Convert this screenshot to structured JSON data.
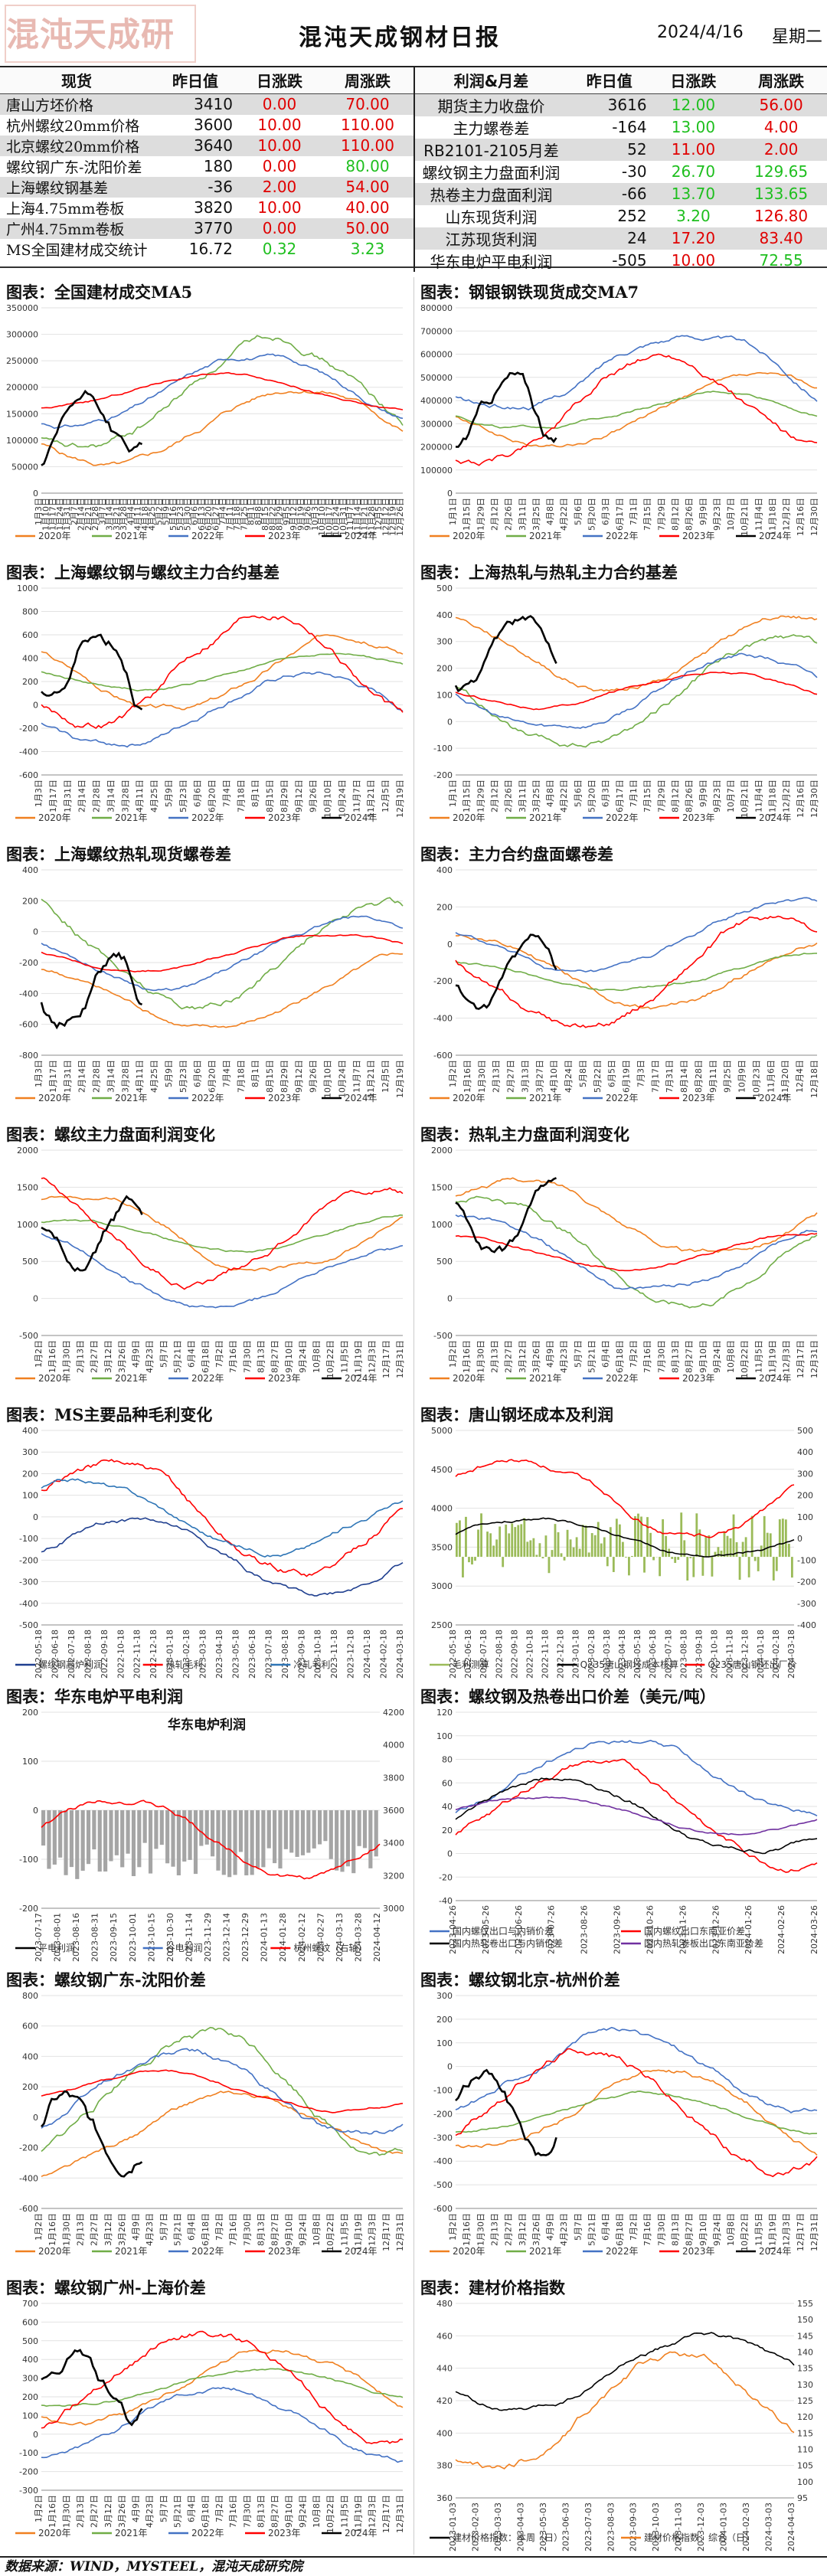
{
  "header": {
    "logo": "混沌天成研究院",
    "title": "混沌天成钢材日报",
    "date": "2024/4/16",
    "weekday": "星期二"
  },
  "quote_table": {
    "left_headers": [
      "现货",
      "昨日值",
      "日涨跌",
      "周涨跌"
    ],
    "right_headers": [
      "利润&月差",
      "昨日值",
      "日涨跌",
      "周涨跌"
    ],
    "left_rows": [
      [
        "唐山方坯价格",
        "3410",
        "0.00",
        "70.00"
      ],
      [
        "杭州螺纹20mm价格",
        "3600",
        "10.00",
        "110.00"
      ],
      [
        "北京螺纹20mm价格",
        "3640",
        "10.00",
        "110.00"
      ],
      [
        "螺纹钢广东-沈阳价差",
        "180",
        "0.00",
        "80.00"
      ],
      [
        "上海螺纹钢基差",
        "-36",
        "2.00",
        "54.00"
      ],
      [
        "上海4.75mm卷板",
        "3820",
        "10.00",
        "40.00"
      ],
      [
        "广州4.75mm卷板",
        "3770",
        "0.00",
        "50.00"
      ],
      [
        "MS全国建材成交统计",
        "16.72",
        "0.32",
        "3.23"
      ]
    ],
    "left_colors": [
      [
        "red",
        "red"
      ],
      [
        "red",
        "red"
      ],
      [
        "red",
        "red"
      ],
      [
        "red",
        "grn"
      ],
      [
        "red",
        "red"
      ],
      [
        "red",
        "red"
      ],
      [
        "red",
        "red"
      ],
      [
        "grn",
        "grn"
      ]
    ],
    "right_rows": [
      [
        "期货主力收盘价",
        "3616",
        "12.00",
        "56.00"
      ],
      [
        "主力螺卷差",
        "-164",
        "13.00",
        "4.00"
      ],
      [
        "RB2101-2105月差",
        "52",
        "11.00",
        "2.00"
      ],
      [
        "螺纹钢主力盘面利润",
        "-30",
        "26.70",
        "129.65"
      ],
      [
        "热卷主力盘面利润",
        "-66",
        "13.70",
        "133.65"
      ],
      [
        "山东现货利润",
        "252",
        "3.20",
        "126.80"
      ],
      [
        "江苏现货利润",
        "24",
        "17.20",
        "83.40"
      ],
      [
        "华东电炉平电利润",
        "-505",
        "10.00",
        "72.55"
      ]
    ],
    "right_colors": [
      [
        "grn",
        "red"
      ],
      [
        "grn",
        "red"
      ],
      [
        "red",
        "red"
      ],
      [
        "grn",
        "grn"
      ],
      [
        "grn",
        "grn"
      ],
      [
        "grn",
        "red"
      ],
      [
        "red",
        "red"
      ],
      [
        "red",
        "grn"
      ]
    ]
  },
  "colors": {
    "y2020": "#f08020",
    "y2021": "#70ad47",
    "y2022": "#4472c4",
    "y2023": "#ff0000",
    "y2024": "#000000"
  },
  "panels": [
    {
      "id": "p1",
      "title": "图表：全国建材成交MA5",
      "yticks": [
        "0",
        "50000",
        "100000",
        "150000",
        "200000",
        "250000",
        "300000",
        "350000"
      ],
      "xticks": [
        "1月3日",
        "1月10日",
        "1月17日",
        "1月24日",
        "1月31日",
        "2月7日",
        "2月14日",
        "2月21日",
        "2月28日",
        "3月7日",
        "3月14日",
        "3月21日",
        "3月28日",
        "4月4日",
        "4月11日",
        "4月18日",
        "4月25日",
        "5月2日",
        "5月9日",
        "5月16日",
        "5月23日",
        "5月30日",
        "6月6日",
        "6月13日",
        "6月20日",
        "6月27日",
        "7月4日",
        "7月11日",
        "7月18日",
        "7月25日",
        "8月1日",
        "8月8日",
        "8月15日",
        "8月22日",
        "8月29日",
        "9月5日",
        "9月12日",
        "9月19日",
        "9月26日",
        "10月3日",
        "10月10日",
        "10月17日",
        "10月24日",
        "10月31日",
        "11月7日",
        "11月14日",
        "11月21日",
        "11月28日",
        "12月5日",
        "12月12日",
        "12月19日",
        "12月26日"
      ],
      "legend": [
        "2020年",
        "2021年",
        "2022年",
        "2023年",
        "2024年"
      ]
    },
    {
      "id": "p2",
      "title": "图表：钢银钢铁现货成交MA7",
      "yticks": [
        "0",
        "100000",
        "200000",
        "300000",
        "400000",
        "500000",
        "600000",
        "700000",
        "800000"
      ],
      "xticks": [
        "1月1日",
        "1月15日",
        "1月29日",
        "2月12日",
        "2月26日",
        "3月11日",
        "3月25日",
        "4月8日",
        "4月22日",
        "5月6日",
        "5月20日",
        "6月3日",
        "6月17日",
        "7月1日",
        "7月15日",
        "7月29日",
        "8月12日",
        "8月26日",
        "9月9日",
        "9月23日",
        "10月7日",
        "10月21日",
        "11月4日",
        "11月18日",
        "12月2日",
        "12月16日",
        "12月30日"
      ],
      "legend": [
        "2020年",
        "2021年",
        "2022年",
        "2023年",
        "2024年"
      ]
    },
    {
      "id": "p3",
      "title": "图表：上海螺纹钢与螺纹主力合约基差",
      "yticks": [
        "-600",
        "-400",
        "-200",
        "0",
        "200",
        "400",
        "600",
        "800",
        "1000"
      ],
      "xticks": [
        "1月3日",
        "1月17日",
        "1月31日",
        "2月14日",
        "2月28日",
        "3月14日",
        "3月28日",
        "4月11日",
        "4月25日",
        "5月9日",
        "5月23日",
        "6月6日",
        "6月20日",
        "7月4日",
        "7月18日",
        "8月1日",
        "8月15日",
        "8月29日",
        "9月12日",
        "9月26日",
        "10月10日",
        "10月24日",
        "11月7日",
        "11月21日",
        "12月5日",
        "12月19日"
      ],
      "legend": [
        "2020年",
        "2021年",
        "2022年",
        "2023年",
        "2024年"
      ]
    },
    {
      "id": "p4",
      "title": "图表：上海热轧与热轧主力合约基差",
      "yticks": [
        "-200",
        "-100",
        "0",
        "100",
        "200",
        "300",
        "400",
        "500"
      ],
      "xticks": [
        "1月1日",
        "1月15日",
        "1月29日",
        "2月12日",
        "2月26日",
        "3月11日",
        "3月25日",
        "4月8日",
        "4月22日",
        "5月6日",
        "5月20日",
        "6月3日",
        "6月17日",
        "7月1日",
        "7月15日",
        "7月29日",
        "8月12日",
        "8月26日",
        "9月9日",
        "9月23日",
        "10月7日",
        "10月21日",
        "11月4日",
        "11月18日",
        "12月2日",
        "12月16日",
        "12月30日"
      ],
      "legend": [
        "2020年",
        "2021年",
        "2022年",
        "2023年",
        "2024年"
      ]
    },
    {
      "id": "p5",
      "title": "图表：上海螺纹热轧现货螺卷差",
      "yticks": [
        "-800",
        "-600",
        "-400",
        "-200",
        "0",
        "200",
        "400"
      ],
      "xticks": [
        "1月3日",
        "1月17日",
        "1月31日",
        "2月14日",
        "2月28日",
        "3月14日",
        "3月28日",
        "4月11日",
        "4月25日",
        "5月9日",
        "5月23日",
        "6月6日",
        "6月20日",
        "7月4日",
        "7月18日",
        "8月1日",
        "8月15日",
        "8月29日",
        "9月12日",
        "9月26日",
        "10月10日",
        "10月24日",
        "11月7日",
        "11月21日",
        "12月5日",
        "12月19日"
      ],
      "legend": [
        "2020年",
        "2021年",
        "2022年",
        "2023年",
        "2024年"
      ]
    },
    {
      "id": "p6",
      "title": "图表：主力合约盘面螺卷差",
      "yticks": [
        "-600",
        "-400",
        "-200",
        "0",
        "200",
        "400"
      ],
      "xticks": [
        "1月2日",
        "1月16日",
        "1月30日",
        "2月13日",
        "2月27日",
        "3月13日",
        "3月27日",
        "4月10日",
        "4月24日",
        "5月8日",
        "5月22日",
        "6月5日",
        "6月19日",
        "7月3日",
        "7月17日",
        "7月31日",
        "8月14日",
        "8月28日",
        "9月11日",
        "9月25日",
        "10月9日",
        "10月23日",
        "11月6日",
        "11月20日",
        "12月4日",
        "12月18日"
      ],
      "legend": [
        "2020年",
        "2021年",
        "2022年",
        "2023年",
        "2024年"
      ]
    },
    {
      "id": "p7",
      "title": "图表：螺纹主力盘面利润变化",
      "yticks": [
        "-500",
        "0",
        "500",
        "1000",
        "1500",
        "2000"
      ],
      "xticks": [
        "1月2日",
        "1月16日",
        "1月30日",
        "2月13日",
        "2月27日",
        "3月12日",
        "3月26日",
        "4月9日",
        "4月23日",
        "5月7日",
        "5月21日",
        "6月4日",
        "6月18日",
        "7月2日",
        "7月16日",
        "7月30日",
        "8月13日",
        "8月27日",
        "9月10日",
        "9月24日",
        "10月8日",
        "10月22日",
        "11月5日",
        "11月19日",
        "12月3日",
        "12月17日",
        "12月31日"
      ],
      "legend": [
        "2020年",
        "2021年",
        "2022年",
        "2023年",
        "2024年"
      ]
    },
    {
      "id": "p8",
      "title": "图表：热轧主力盘面利润变化",
      "yticks": [
        "-500",
        "0",
        "500",
        "1000",
        "1500",
        "2000"
      ],
      "xticks": [
        "1月2日",
        "1月16日",
        "1月30日",
        "2月13日",
        "2月27日",
        "3月12日",
        "3月26日",
        "4月9日",
        "4月23日",
        "5月7日",
        "5月21日",
        "6月4日",
        "6月18日",
        "7月2日",
        "7月16日",
        "7月30日",
        "8月13日",
        "8月27日",
        "9月10日",
        "9月24日",
        "10月8日",
        "10月22日",
        "11月5日",
        "11月19日",
        "12月3日",
        "12月17日",
        "12月31日"
      ],
      "legend": [
        "2020年",
        "2021年",
        "2022年",
        "2023年",
        "2024年"
      ]
    },
    {
      "id": "p9",
      "title": "图表：MS主要品种毛利变化",
      "yticks": [
        "-500",
        "-400",
        "-300",
        "-200",
        "-100",
        "0",
        "100",
        "200",
        "300",
        "400"
      ],
      "xticks": [
        "2022-05-18",
        "2022-06-18",
        "2022-07-18",
        "2022-08-18",
        "2022-09-18",
        "2022-10-18",
        "2022-11-18",
        "2022-12-18",
        "2023-01-18",
        "2023-02-18",
        "2023-03-18",
        "2023-04-18",
        "2023-05-18",
        "2023-06-18",
        "2023-07-18",
        "2023-08-18",
        "2023-09-18",
        "2023-10-18",
        "2023-11-18",
        "2023-12-18",
        "2024-01-18",
        "2024-02-18",
        "2024-03-18"
      ],
      "legend": [
        "螺纹钢高炉利润",
        "热轧毛利",
        "冷轧毛利"
      ]
    },
    {
      "id": "p10",
      "title": "图表：唐山钢坯成本及利润",
      "yticks": [
        "2500",
        "3000",
        "3500",
        "4000",
        "4500",
        "5000"
      ],
      "y2ticks": [
        "-400",
        "-300",
        "-200",
        "-100",
        "0",
        "100",
        "200",
        "300",
        "400",
        "500"
      ],
      "xticks": [
        "2022-05-18",
        "2022-06-18",
        "2022-07-18",
        "2022-08-18",
        "2022-09-18",
        "2022-10-18",
        "2022-11-18",
        "2022-12-18",
        "2023-01-18",
        "2023-02-18",
        "2023-03-18",
        "2023-04-18",
        "2023-05-18",
        "2023-06-18",
        "2023-07-18",
        "2023-08-18",
        "2023-09-18",
        "2023-10-18",
        "2023-11-18",
        "2023-12-18",
        "2024-01-18",
        "2024-02-18",
        "2024-03-18"
      ],
      "legend": [
        "毛利测算",
        "Q235唐山钢坯成本核算",
        "Q235唐山钢坯出厂价"
      ]
    },
    {
      "id": "p11",
      "title": "图表：华东电炉平电利润",
      "inner_title": "华东电炉利润",
      "yticks": [
        "-200",
        "-100",
        "0",
        "100",
        "200"
      ],
      "y2ticks": [
        "3000",
        "3200",
        "3400",
        "3600",
        "3800",
        "4000",
        "4200"
      ],
      "xticks": [
        "2023-07-17",
        "2023-08-01",
        "2023-08-16",
        "2023-08-31",
        "2023-09-15",
        "2023-10-01",
        "2023-10-15",
        "2023-10-30",
        "2023-11-14",
        "2023-11-29",
        "2023-12-14",
        "2023-12-29",
        "2024-01-13",
        "2024-01-28",
        "2024-02-12",
        "2024-02-27",
        "2024-03-13",
        "2024-03-28",
        "2024-04-12"
      ],
      "legend": [
        "平电利润",
        "谷电利润",
        "杭州螺纹（右轴）"
      ]
    },
    {
      "id": "p12",
      "title": "图表：螺纹钢及热卷出口价差（美元/吨）",
      "yticks": [
        "-40",
        "-20",
        "0",
        "20",
        "40",
        "60",
        "80",
        "100",
        "120"
      ],
      "xticks": [
        "2023-04-26",
        "2023-05-26",
        "2023-06-26",
        "2023-07-26",
        "2023-08-26",
        "2023-09-26",
        "2023-10-26",
        "2023-11-26",
        "2023-12-26",
        "2024-01-26",
        "2024-02-26",
        "2024-03-26"
      ],
      "legend": [
        "国内螺纹出口与内销价差",
        "国内螺纹出口东南亚价差",
        "国内热轧卷出口与内销价差",
        "国内热轧卷板出口东南亚价差"
      ]
    },
    {
      "id": "p13",
      "title": "图表：螺纹钢广东-沈阳价差",
      "yticks": [
        "-600",
        "-400",
        "-200",
        "0",
        "200",
        "400",
        "600",
        "800"
      ],
      "xticks": [
        "1月2日",
        "1月16日",
        "1月30日",
        "2月13日",
        "2月27日",
        "3月12日",
        "3月26日",
        "4月9日",
        "4月23日",
        "5月7日",
        "5月21日",
        "6月4日",
        "6月18日",
        "7月2日",
        "7月16日",
        "7月30日",
        "8月13日",
        "8月27日",
        "9月10日",
        "9月24日",
        "10月8日",
        "10月22日",
        "11月5日",
        "11月19日",
        "12月3日",
        "12月17日",
        "12月31日"
      ],
      "legend": [
        "2020年",
        "2021年",
        "2022年",
        "2023年",
        "2024年"
      ]
    },
    {
      "id": "p14",
      "title": "图表：螺纹钢北京-杭州价差",
      "yticks": [
        "-600",
        "-500",
        "-400",
        "-300",
        "-200",
        "-100",
        "0",
        "100",
        "200",
        "300"
      ],
      "xticks": [
        "1月2日",
        "1月16日",
        "1月30日",
        "2月13日",
        "2月27日",
        "3月12日",
        "3月26日",
        "4月9日",
        "4月23日",
        "5月7日",
        "5月21日",
        "6月4日",
        "6月18日",
        "7月2日",
        "7月16日",
        "7月30日",
        "8月13日",
        "8月27日",
        "9月10日",
        "9月24日",
        "10月8日",
        "10月22日",
        "11月5日",
        "11月19日",
        "12月3日",
        "12月17日",
        "12月31日"
      ],
      "legend": [
        "2020年",
        "2021年",
        "2022年",
        "2023年",
        "2024年"
      ]
    },
    {
      "id": "p15",
      "title": "图表：螺纹钢广州-上海价差",
      "yticks": [
        "-300",
        "-200",
        "-100",
        "0",
        "100",
        "200",
        "300",
        "400",
        "500",
        "600",
        "700"
      ],
      "xticks": [
        "1月2日",
        "1月16日",
        "1月30日",
        "2月13日",
        "2月27日",
        "3月12日",
        "3月26日",
        "4月9日",
        "4月23日",
        "5月7日",
        "5月21日",
        "6月4日",
        "6月18日",
        "7月2日",
        "7月16日",
        "7月30日",
        "8月13日",
        "8月27日",
        "9月10日",
        "9月24日",
        "10月8日",
        "10月22日",
        "11月5日",
        "11月19日",
        "12月3日",
        "12月17日",
        "12月31日"
      ],
      "legend": [
        "2020年",
        "2021年",
        "2022年",
        "2023年",
        "2024年"
      ]
    },
    {
      "id": "p16",
      "title": "图表：建材价格指数",
      "yticks": [
        "360",
        "380",
        "400",
        "420",
        "440",
        "460",
        "480"
      ],
      "y2ticks": [
        "95",
        "100",
        "105",
        "110",
        "115",
        "120",
        "125",
        "130",
        "135",
        "140",
        "145",
        "150",
        "155"
      ],
      "xticks": [
        "2023-01-03",
        "2023-02-03",
        "2023-03-03",
        "2023-04-03",
        "2023-05-03",
        "2023-06-03",
        "2023-07-03",
        "2023-08-03",
        "2023-09-03",
        "2023-10-03",
        "2023-11-03",
        "2023-12-03",
        "2024-01-03",
        "2024-02-03",
        "2024-03-03",
        "2024-04-03"
      ],
      "legend": [
        "建材价格指数：本周（日）",
        "建材价格指数：综合（日）"
      ]
    }
  ],
  "footer": "数据来源：WIND，MYSTEEL，混沌天成研究院"
}
